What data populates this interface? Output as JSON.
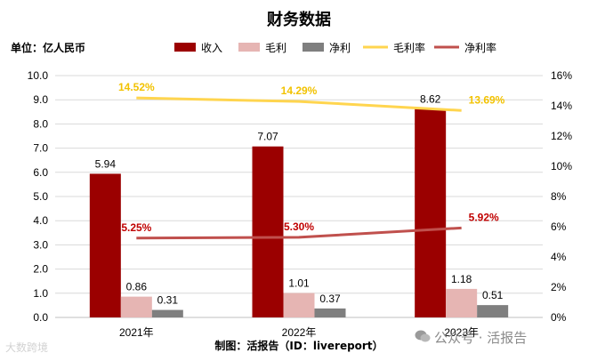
{
  "chart_data": {
    "type": "bar",
    "title": "财务数据",
    "unit_label": "单位：亿人民币",
    "categories": [
      "2021年",
      "2022年",
      "2023年"
    ],
    "series": [
      {
        "name": "收入",
        "kind": "bar",
        "axis": "left",
        "color": "#9b0000",
        "values": [
          5.94,
          7.07,
          8.62
        ]
      },
      {
        "name": "毛利",
        "kind": "bar",
        "axis": "left",
        "color": "#e6b5b3",
        "values": [
          0.86,
          1.01,
          1.18
        ]
      },
      {
        "name": "净利",
        "kind": "bar",
        "axis": "left",
        "color": "#7f7f7f",
        "values": [
          0.31,
          0.37,
          0.51
        ]
      },
      {
        "name": "毛利率",
        "kind": "line",
        "axis": "right",
        "color": "#ffd54f",
        "label_color": "#f2c200",
        "values": [
          14.52,
          14.29,
          13.69
        ]
      },
      {
        "name": "净利率",
        "kind": "line",
        "axis": "right",
        "color": "#c0504d",
        "label_color": "#c00000",
        "values": [
          5.25,
          5.3,
          5.92
        ]
      }
    ],
    "value_labels": {
      "收入": [
        "5.94",
        "7.07",
        "8.62"
      ],
      "毛利": [
        "0.86",
        "1.01",
        "1.18"
      ],
      "净利": [
        "0.31",
        "0.37",
        "0.51"
      ],
      "毛利率": [
        "14.52%",
        "14.29%",
        "13.69%"
      ],
      "净利率": [
        "5.25%",
        "5.30%",
        "5.92%"
      ]
    },
    "left_axis": {
      "ylim": [
        0,
        10
      ],
      "ticks": [
        "0.0",
        "1.0",
        "2.0",
        "3.0",
        "4.0",
        "5.0",
        "6.0",
        "7.0",
        "8.0",
        "9.0",
        "10.0"
      ]
    },
    "right_axis": {
      "ylim": [
        0,
        16
      ],
      "ticks": [
        "0%",
        "2%",
        "4%",
        "6%",
        "8%",
        "10%",
        "12%",
        "14%",
        "16%"
      ]
    },
    "grid": true,
    "legend_position": "top",
    "source": "制图：活报告（ID：livereport）"
  },
  "watermark": {
    "left": "大数跨境",
    "right": "公众号 · 活报告"
  }
}
